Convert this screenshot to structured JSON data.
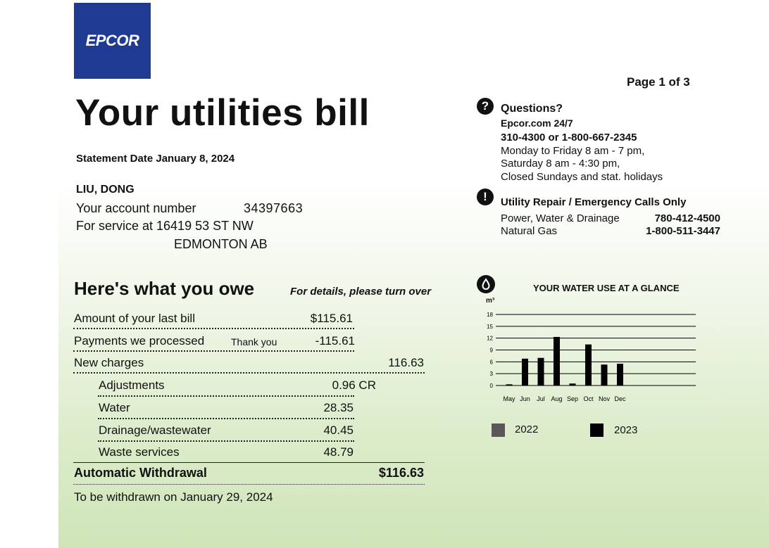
{
  "header": {
    "logo_text": "EPCOR",
    "page": "Page 1 of 3",
    "title": "Your utilities bill",
    "statement_date": "Statement Date January 8, 2024"
  },
  "customer": {
    "name": "LIU, DONG",
    "account_label": "Your account number",
    "account_number": "34397663",
    "service_label": "For service at 16419 53 ST NW",
    "service_city": "EDMONTON AB"
  },
  "owe": {
    "heading": "Here's what you owe",
    "subheading": "For details, please turn over",
    "last_bill_label": "Amount of your last bill",
    "last_bill_value": "$115.61",
    "payments_label": "Payments we processed",
    "payments_note": "Thank you",
    "payments_value": "-115.61",
    "new_charges_label": "New charges",
    "new_charges_value": "116.63",
    "items": [
      {
        "label": "Adjustments",
        "value": "0.96 CR"
      },
      {
        "label": "Water",
        "value": "28.35"
      },
      {
        "label": "Drainage/wastewater",
        "value": "40.45"
      },
      {
        "label": "Waste services",
        "value": "48.79"
      }
    ],
    "auto_label": "Automatic Withdrawal",
    "auto_value": "$116.63",
    "withdraw_note": "To be withdrawn on January 29, 2024"
  },
  "questions": {
    "icon": "question-icon",
    "title": "Questions?",
    "web": "Epcor.com 24/7",
    "phone": "310-4300 or 1-800-667-2345",
    "hours1": "Monday to Friday 8 am - 7 pm,",
    "hours2": "Saturday 8 am - 4:30 pm,",
    "hours3": "Closed Sundays and stat. holidays"
  },
  "repair": {
    "icon": "alert-icon",
    "title": "Utility Repair / Emergency Calls Only",
    "line1_label": "Power, Water & Drainage",
    "line1_phone": "780-412-4500",
    "line2_label": "Natural Gas",
    "line2_phone": "1-800-511-3447"
  },
  "water": {
    "icon": "water-drop-icon",
    "title": "YOUR WATER USE AT A GLANCE",
    "unit": "m³"
  },
  "chart_data": {
    "type": "bar",
    "title": "YOUR WATER USE AT A GLANCE",
    "ylabel": "m³",
    "xlabel": "",
    "ylim": [
      0,
      18
    ],
    "yticks": [
      0,
      3,
      6,
      9,
      12,
      15,
      18
    ],
    "categories": [
      "May",
      "Jun",
      "Jul",
      "Aug",
      "Sep",
      "Oct",
      "Nov",
      "Dec"
    ],
    "grid": true,
    "legend_position": "bottom",
    "series": [
      {
        "name": "2022",
        "color": "#5b5658",
        "values": [
          null,
          null,
          null,
          null,
          null,
          null,
          null,
          null
        ]
      },
      {
        "name": "2023",
        "color": "#000000",
        "values": [
          0.3,
          6.8,
          7.0,
          12.3,
          0.5,
          10.4,
          5.3,
          5.5
        ]
      }
    ]
  }
}
